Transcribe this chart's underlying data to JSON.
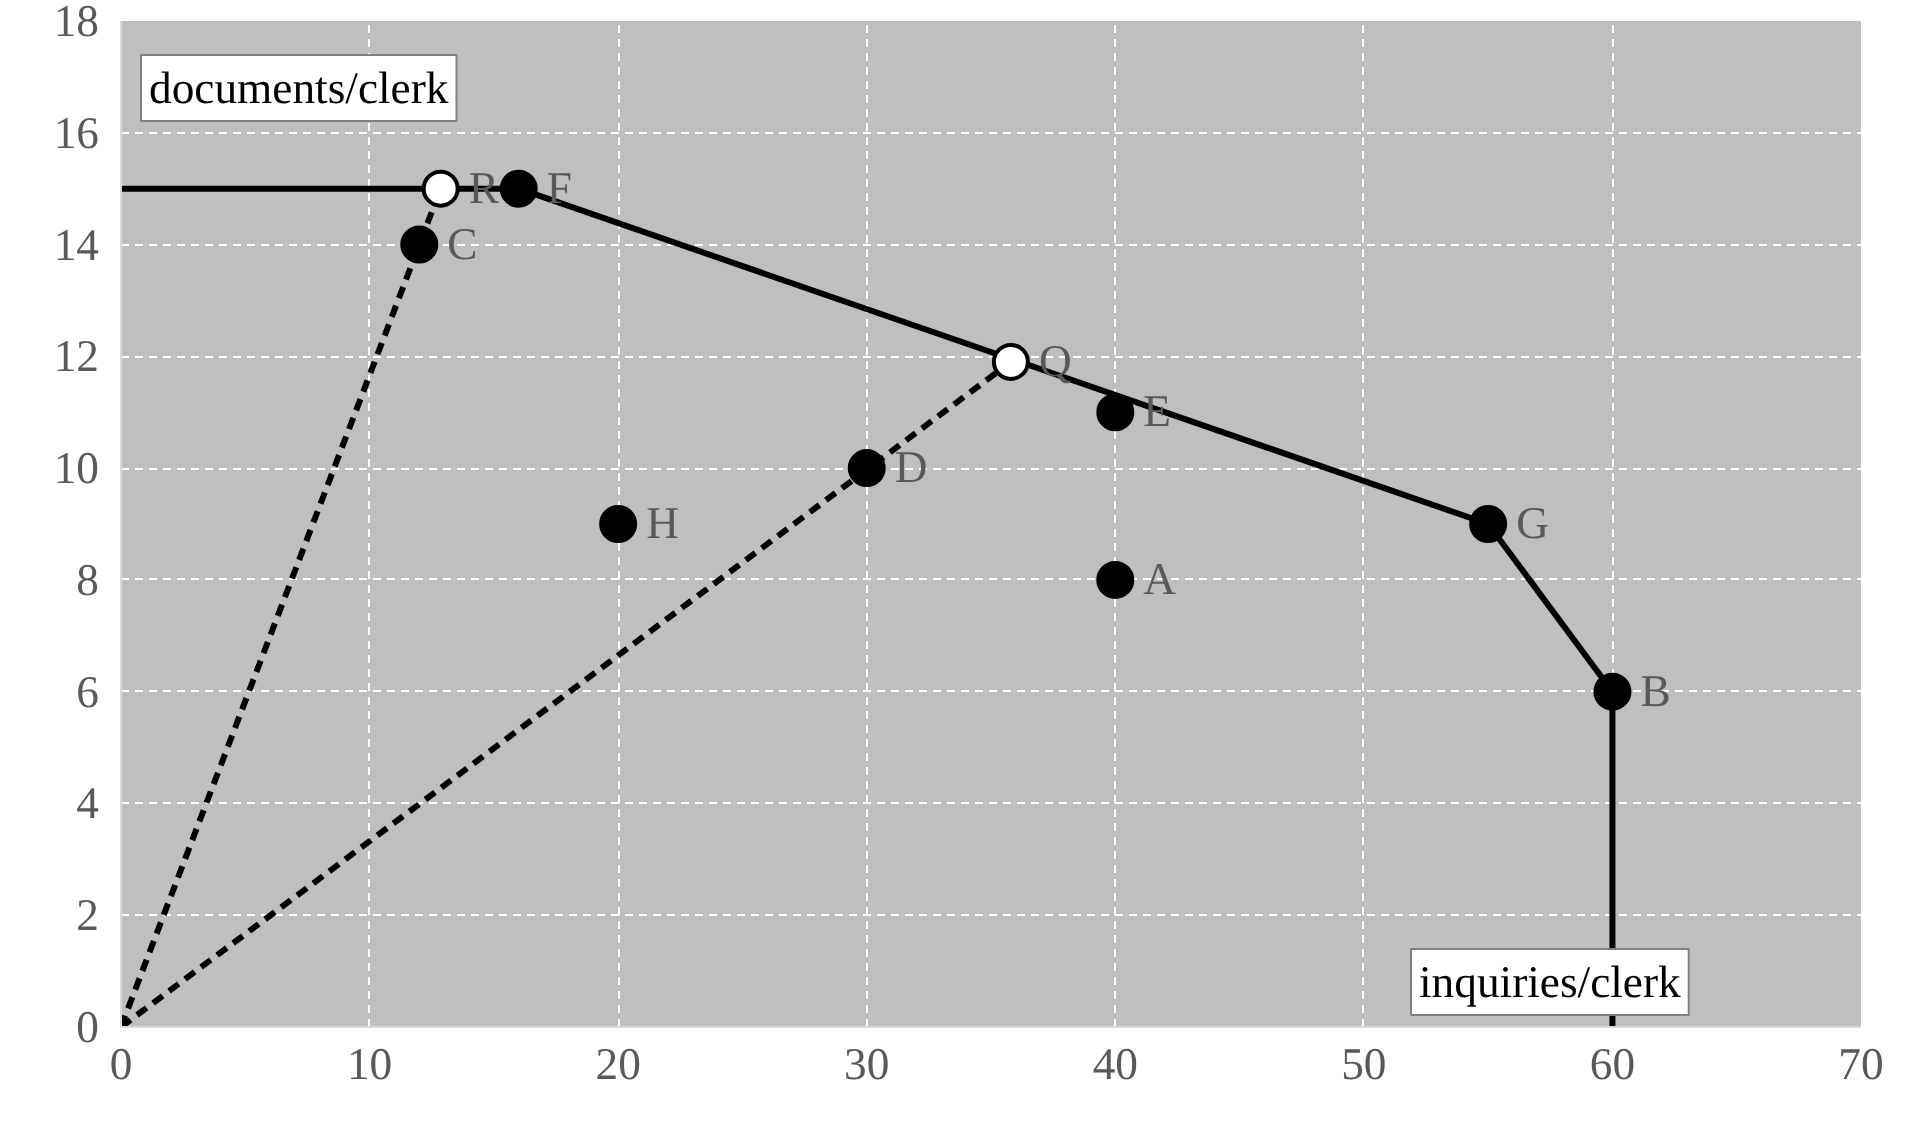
{
  "chart_data": {
    "type": "scatter",
    "xlabel": "inquiries/clerk",
    "ylabel": "documents/clerk",
    "xlim": [
      0,
      70
    ],
    "ylim": [
      0,
      18
    ],
    "xticks": [
      0,
      10,
      20,
      30,
      40,
      50,
      60,
      70
    ],
    "yticks": [
      0,
      2,
      4,
      6,
      8,
      10,
      12,
      14,
      16,
      18
    ],
    "grid": true,
    "series": [
      {
        "type": "line",
        "color": "#000000",
        "line_style": "solid",
        "marker": "none",
        "x": [
          0,
          16,
          55,
          60,
          60
        ],
        "values": [
          15,
          15,
          9,
          6,
          0
        ]
      },
      {
        "type": "line",
        "color": "#000000",
        "line_style": "dashed",
        "marker": "none",
        "x": [
          0,
          12.86
        ],
        "values": [
          0,
          15
        ]
      },
      {
        "type": "line",
        "color": "#000000",
        "line_style": "dashed",
        "marker": "none",
        "x": [
          0,
          35.8
        ],
        "values": [
          0,
          11.9
        ]
      },
      {
        "color": "#000000",
        "marker": "circle",
        "x": [
          40,
          60,
          12,
          30,
          40,
          16,
          55,
          20
        ],
        "values": [
          8,
          6,
          14,
          10,
          11,
          15,
          9,
          9
        ]
      },
      {
        "color": "#ffffff",
        "marker": "circle",
        "x": [
          12.86,
          35.8
        ],
        "values": [
          15,
          11.9
        ]
      }
    ],
    "annotations": [
      {
        "text": "A",
        "x": 40,
        "y": 8
      },
      {
        "text": "B",
        "x": 60,
        "y": 6
      },
      {
        "text": "C",
        "x": 12,
        "y": 14
      },
      {
        "text": "D",
        "x": 30,
        "y": 10
      },
      {
        "text": "E",
        "x": 40,
        "y": 11
      },
      {
        "text": "F",
        "x": 16,
        "y": 15
      },
      {
        "text": "G",
        "x": 55,
        "y": 9
      },
      {
        "text": "H",
        "x": 20,
        "y": 9
      },
      {
        "text": "R",
        "x": 12.86,
        "y": 15
      },
      {
        "text": "Q",
        "x": 35.8,
        "y": 11.9
      }
    ]
  }
}
